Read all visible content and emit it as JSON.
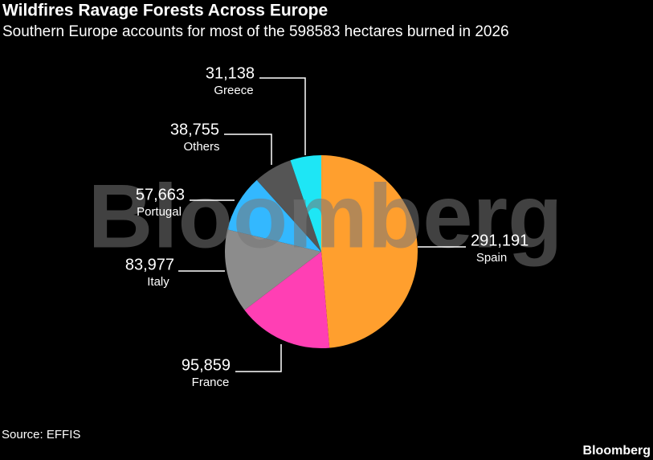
{
  "chart_data": {
    "type": "pie",
    "title": "Wildfires Ravage Forests Across Europe",
    "subtitle": "Southern Europe accounts for most of the 598583 hectares burned in 2026",
    "categories": [
      "Spain",
      "France",
      "Italy",
      "Portugal",
      "Others",
      "Greece"
    ],
    "values": [
      291191,
      95859,
      83977,
      57663,
      38755,
      31138
    ],
    "value_labels": [
      "291,191",
      "95,859",
      "83,977",
      "57,663",
      "38,755",
      "31,138"
    ],
    "colors": [
      "#ff9f2e",
      "#ff3fb4",
      "#8c8c8c",
      "#33b8ff",
      "#555555",
      "#1ee6f5"
    ],
    "source": "Source: EFFIS",
    "watermark": "Bloomberg",
    "logo": "Bloomberg"
  }
}
